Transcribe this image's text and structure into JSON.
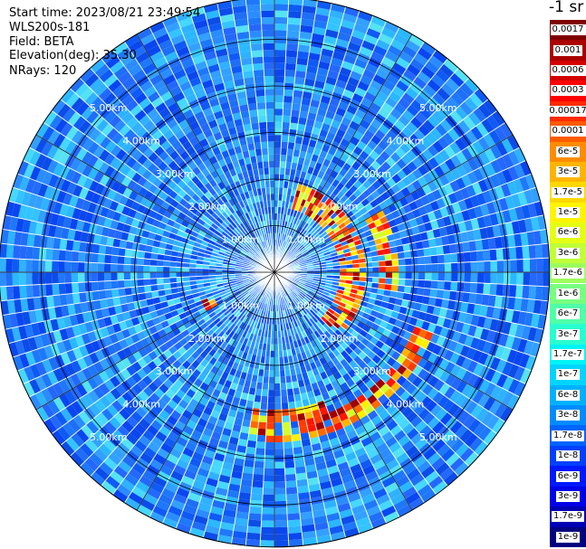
{
  "info": {
    "start_time": "Start time: 2023/08/21 23:49:54",
    "instrument": "WLS200s-181",
    "field": "Field: BETA",
    "elevation": "Elevation(deg): 35.30",
    "nrays": "NRays: 120"
  },
  "colorbar": {
    "title": "-1 sr",
    "labels": [
      "0.0017",
      "0.001",
      "0.0006",
      "0.0003",
      "0.00017",
      "0.0001",
      "6e-5",
      "3e-5",
      "1.7e-5",
      "1e-5",
      "6e-6",
      "3e-6",
      "1.7e-6",
      "1e-6",
      "6e-7",
      "3e-7",
      "1.7e-7",
      "1e-7",
      "6e-8",
      "3e-8",
      "1.7e-8",
      "1e-8",
      "6e-9",
      "3e-9",
      "1.7e-9",
      "1e-9"
    ],
    "colors": [
      "#7f0000",
      "#aa0000",
      "#d40000",
      "#ff0000",
      "#ff2a00",
      "#ff5a00",
      "#ff8c00",
      "#ffb400",
      "#ffd800",
      "#fff400",
      "#e4ff14",
      "#c0ff38",
      "#9cff5c",
      "#78ff80",
      "#50ffa8",
      "#28ffd0",
      "#00f4f4",
      "#00d4ff",
      "#00b0ff",
      "#008cff",
      "#0064ff",
      "#0040ff",
      "#0018ff",
      "#0000e8",
      "#0000b4",
      "#000080"
    ]
  },
  "chart_data": {
    "type": "heatmap",
    "subtype": "polar PPI scan",
    "quantity": "BETA (backscatter)",
    "unit": "sr-1",
    "scale": "log",
    "range_rings_km": [
      "1.00km",
      "2.00km",
      "3.00km",
      "4.00km",
      "5.00km"
    ],
    "n_rays": 120,
    "max_range_km": 5.9,
    "background_level": "1e-8 to 1e-7",
    "echo_features": [
      {
        "label": "near-field arc",
        "range_km": [
          1.4,
          1.9
        ],
        "azimuth_deg": [
          -75,
          45
        ],
        "value": "3e-5 to 0.001"
      },
      {
        "label": "east arc",
        "range_km": [
          2.2,
          2.7
        ],
        "azimuth_deg": [
          -30,
          10
        ],
        "value": "1e-5 to 0.0006"
      },
      {
        "label": "southeast arc",
        "range_km": [
          3.3,
          3.7
        ],
        "azimuth_deg": [
          20,
          70
        ],
        "value": "1e-5 to 0.0006"
      },
      {
        "label": "south arc",
        "range_km": [
          3.0,
          3.6
        ],
        "azimuth_deg": [
          70,
          100
        ],
        "value": "1e-5 to 0.0006"
      },
      {
        "label": "southwest spot",
        "range_km": [
          1.4,
          1.7
        ],
        "azimuth_deg": [
          150,
          160
        ],
        "value": "1e-5 to 0.0003"
      }
    ]
  }
}
